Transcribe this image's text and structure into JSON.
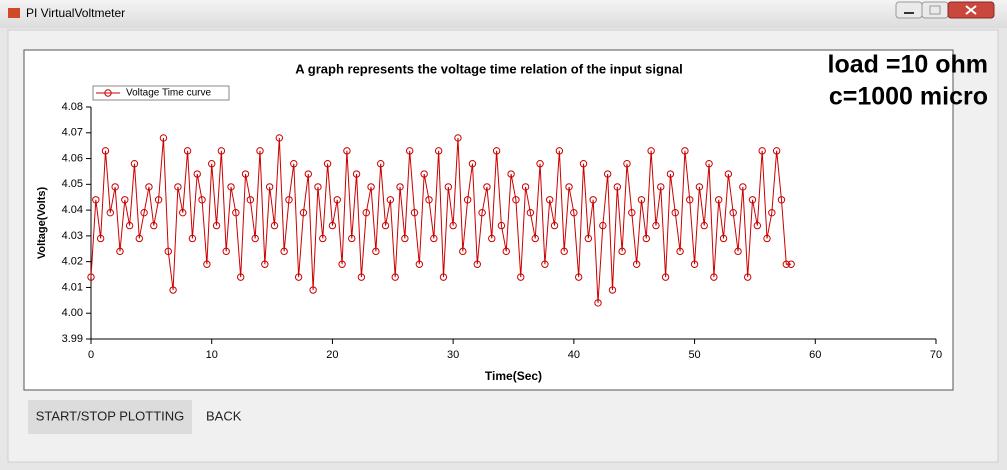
{
  "window": {
    "title": "PI VirtualVoltmeter"
  },
  "buttons": [
    "START/STOP PLOTTING",
    "BACK"
  ],
  "chart_data": {
    "type": "line",
    "title": "A graph represents the voltage time relation of the input signal",
    "annotations": [
      "load =10  ohm",
      "c=1000 micro"
    ],
    "x_label": "Time(Sec)",
    "y_label": "Voltage(Volts)",
    "xlim": [
      0,
      70
    ],
    "xticks": [
      0,
      10,
      20,
      30,
      40,
      50,
      60,
      70
    ],
    "ylim": [
      3.99,
      4.08
    ],
    "yticks": [
      3.99,
      {
        "value": 4,
        "label": "4.00"
      },
      4.01,
      4.02,
      4.03,
      4.04,
      4.05,
      4.06,
      4.07,
      4.08
    ],
    "grid": false,
    "legend": "top-left",
    "x": [
      0,
      0.4,
      0.8,
      1.2,
      1.6,
      2,
      2.4,
      2.8,
      3.2,
      3.6,
      4,
      4.4,
      4.8,
      5.2,
      5.6,
      6,
      6.4,
      6.8,
      7.2,
      7.6,
      8,
      8.4,
      8.8,
      9.2,
      9.6,
      10,
      10.4,
      10.8,
      11.2,
      11.6,
      12,
      12.4,
      12.8,
      13.2,
      13.6,
      14,
      14.4,
      14.8,
      15.2,
      15.6,
      16,
      16.4,
      16.8,
      17.2,
      17.6,
      18,
      18.4,
      18.8,
      19.2,
      19.6,
      20,
      20.4,
      20.8,
      21.2,
      21.6,
      22,
      22.4,
      22.8,
      23.2,
      23.6,
      24,
      24.4,
      24.8,
      25.2,
      25.6,
      26,
      26.4,
      26.8,
      27.2,
      27.6,
      28,
      28.4,
      28.8,
      29.2,
      29.6,
      30,
      30.4,
      30.8,
      31.2,
      31.6,
      32,
      32.4,
      32.8,
      33.2,
      33.6,
      34,
      34.4,
      34.8,
      35.2,
      35.6,
      36,
      36.4,
      36.8,
      37.2,
      37.6,
      38,
      38.4,
      38.8,
      39.2,
      39.6,
      40,
      40.4,
      40.8,
      41.2,
      41.6,
      42,
      42.4,
      42.8,
      43.2,
      43.6,
      44,
      44.4,
      44.8,
      45.2,
      45.6,
      46,
      46.4,
      46.8,
      47.2,
      47.6,
      48,
      48.4,
      48.8,
      49.2,
      49.6,
      50,
      50.4,
      50.8,
      51.2,
      51.6,
      52,
      52.4,
      52.8,
      53.2,
      53.6,
      54,
      54.4,
      54.8,
      55.2,
      55.6,
      56,
      56.4,
      56.8,
      57.2,
      57.6,
      58
    ],
    "series": [
      {
        "name": "Voltage Time curve",
        "color": "#cc0000",
        "values": [
          4.014,
          4.044,
          4.029,
          4.063,
          4.039,
          4.049,
          4.024,
          4.044,
          4.034,
          4.058,
          4.029,
          4.039,
          4.049,
          4.034,
          4.044,
          4.068,
          4.024,
          4.009,
          4.049,
          4.039,
          4.063,
          4.029,
          4.054,
          4.044,
          4.019,
          4.058,
          4.034,
          4.063,
          4.024,
          4.049,
          4.039,
          4.014,
          4.054,
          4.044,
          4.029,
          4.063,
          4.019,
          4.049,
          4.034,
          4.068,
          4.024,
          4.044,
          4.058,
          4.014,
          4.039,
          4.054,
          4.009,
          4.049,
          4.029,
          4.058,
          4.034,
          4.044,
          4.019,
          4.063,
          4.029,
          4.054,
          4.014,
          4.039,
          4.049,
          4.024,
          4.058,
          4.034,
          4.044,
          4.014,
          4.049,
          4.029,
          4.063,
          4.039,
          4.019,
          4.054,
          4.044,
          4.029,
          4.063,
          4.014,
          4.049,
          4.034,
          4.068,
          4.024,
          4.044,
          4.058,
          4.019,
          4.039,
          4.049,
          4.029,
          4.063,
          4.034,
          4.024,
          4.054,
          4.044,
          4.014,
          4.049,
          4.039,
          4.029,
          4.058,
          4.019,
          4.044,
          4.034,
          4.063,
          4.024,
          4.049,
          4.039,
          4.014,
          4.058,
          4.029,
          4.044,
          4.004,
          4.034,
          4.054,
          4.009,
          4.049,
          4.024,
          4.058,
          4.039,
          4.019,
          4.044,
          4.029,
          4.063,
          4.034,
          4.049,
          4.014,
          4.054,
          4.039,
          4.024,
          4.063,
          4.044,
          4.019,
          4.049,
          4.034,
          4.058,
          4.014,
          4.044,
          4.029,
          4.054,
          4.039,
          4.024,
          4.049,
          4.014,
          4.044,
          4.034,
          4.063,
          4.029,
          4.039,
          4.063,
          4.044,
          4.019,
          4.019
        ]
      }
    ]
  }
}
